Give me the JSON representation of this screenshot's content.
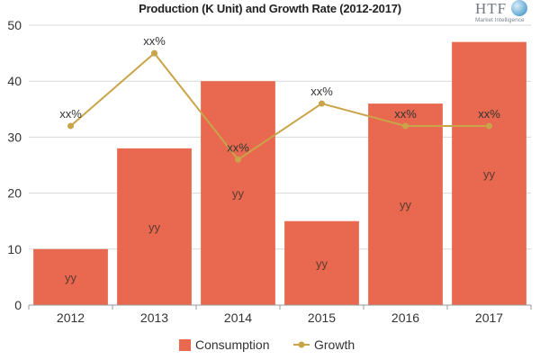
{
  "header": {
    "title": "Production (K Unit) and Growth Rate (2012-2017)",
    "logo_text": "HTF",
    "logo_sub": "Market Intelligence"
  },
  "colors": {
    "bar": "#e8694f",
    "line": "#c9a449",
    "grid": "#d9d9d9",
    "axis": "#9a9a9a",
    "label": "#333333"
  },
  "chart_data": {
    "type": "bar",
    "title": "Production (K Unit) and Growth Rate (2012-2017)",
    "categories": [
      "2012",
      "2013",
      "2014",
      "2015",
      "2016",
      "2017"
    ],
    "ylim": [
      0,
      50
    ],
    "yticks": [
      0,
      10,
      20,
      30,
      40,
      50
    ],
    "grid": true,
    "legend_position": "bottom",
    "series": [
      {
        "name": "Consumption",
        "kind": "bar",
        "values": [
          10,
          28,
          40,
          15,
          36,
          47
        ],
        "labels": [
          "yy",
          "yy",
          "yy",
          "yy",
          "yy",
          "yy"
        ]
      },
      {
        "name": "Growth",
        "kind": "line",
        "values": [
          32,
          45,
          26,
          36,
          32,
          32
        ],
        "labels": [
          "xx%",
          "xx%",
          "xx%",
          "xx%",
          "xx%",
          "xx%"
        ]
      }
    ]
  }
}
